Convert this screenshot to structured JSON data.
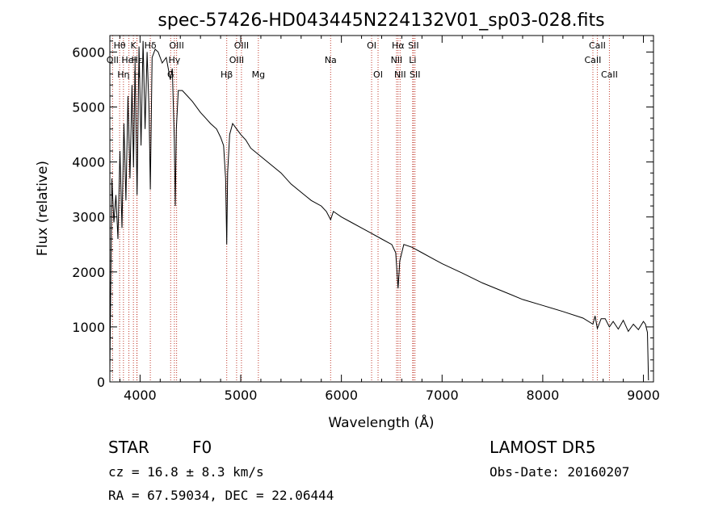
{
  "chart_data": {
    "type": "line",
    "title": "spec-57426-HD043445N224132V01_sp03-028.fits",
    "xlabel": "Wavelength (Å)",
    "ylabel": "Flux (relative)",
    "xlim": [
      3700,
      9100
    ],
    "ylim": [
      0,
      6300
    ],
    "xticks": [
      4000,
      5000,
      6000,
      7000,
      8000,
      9000
    ],
    "yticks": [
      0,
      1000,
      2000,
      3000,
      4000,
      5000,
      6000
    ],
    "grid": false,
    "line_color": "#000000",
    "marker_color": "#c0392b",
    "spectrum": {
      "name": "",
      "x": [
        3700,
        3720,
        3740,
        3760,
        3780,
        3800,
        3820,
        3840,
        3860,
        3880,
        3900,
        3920,
        3935,
        3950,
        3970,
        3990,
        4010,
        4030,
        4050,
        4070,
        4090,
        4102,
        4120,
        4150,
        4180,
        4220,
        4260,
        4300,
        4320,
        4340,
        4350,
        4360,
        4380,
        4420,
        4470,
        4520,
        4600,
        4650,
        4700,
        4760,
        4800,
        4830,
        4850,
        4861,
        4870,
        4890,
        4920,
        4960,
        5000,
        5050,
        5100,
        5200,
        5300,
        5400,
        5500,
        5600,
        5700,
        5800,
        5850,
        5893,
        5920,
        6000,
        6100,
        6200,
        6300,
        6400,
        6500,
        6540,
        6563,
        6580,
        6620,
        6700,
        6800,
        6900,
        7000,
        7200,
        7400,
        7600,
        7800,
        8000,
        8200,
        8400,
        8498,
        8520,
        8542,
        8580,
        8620,
        8662,
        8700,
        8750,
        8800,
        8850,
        8900,
        8950,
        9000,
        9020,
        9040,
        9050
      ],
      "y": [
        200,
        3700,
        2900,
        3400,
        2600,
        4200,
        2800,
        4700,
        3300,
        5200,
        3700,
        5400,
        3900,
        5800,
        3400,
        6100,
        4300,
        6200,
        4600,
        6000,
        4900,
        3500,
        5900,
        6050,
        6000,
        5800,
        5900,
        5500,
        5700,
        4400,
        3200,
        4600,
        5300,
        5300,
        5200,
        5100,
        4900,
        4800,
        4700,
        4600,
        4450,
        4300,
        3700,
        2500,
        3800,
        4500,
        4700,
        4600,
        4500,
        4400,
        4250,
        4100,
        3950,
        3800,
        3600,
        3450,
        3300,
        3200,
        3100,
        2950,
        3100,
        3000,
        2900,
        2800,
        2700,
        2600,
        2500,
        2350,
        1700,
        2200,
        2500,
        2450,
        2350,
        2250,
        2150,
        1980,
        1800,
        1650,
        1500,
        1390,
        1280,
        1160,
        1050,
        1200,
        970,
        1150,
        1150,
        1000,
        1100,
        960,
        1120,
        920,
        1050,
        950,
        1100,
        1050,
        900,
        30
      ]
    },
    "lines": [
      {
        "label": "OII",
        "x": 3727,
        "row": 1
      },
      {
        "label": "Hθ",
        "x": 3797,
        "row": 0
      },
      {
        "label": "Hη",
        "x": 3835,
        "row": 2
      },
      {
        "label": "HeI",
        "x": 3889,
        "row": 1
      },
      {
        "label": "K",
        "x": 3934,
        "row": 0
      },
      {
        "label": "H",
        "x": 3968,
        "row": 2
      },
      {
        "label": "Hε",
        "x": 3970,
        "row": 1
      },
      {
        "label": "Hδ",
        "x": 4102,
        "row": 0
      },
      {
        "label": "Hγ",
        "x": 4341,
        "row": 1
      },
      {
        "label": "G",
        "x": 4304,
        "row": 2
      },
      {
        "label": "OIII",
        "x": 4363,
        "row": 0
      },
      {
        "label": "Hβ",
        "x": 4861,
        "row": 2
      },
      {
        "label": "OIII",
        "x": 4959,
        "row": 1
      },
      {
        "label": "OIII",
        "x": 5007,
        "row": 0
      },
      {
        "label": "Mg",
        "x": 5175,
        "row": 2
      },
      {
        "label": "Na",
        "x": 5893,
        "row": 1
      },
      {
        "label": "OI",
        "x": 6300,
        "row": 0
      },
      {
        "label": "OI",
        "x": 6364,
        "row": 2
      },
      {
        "label": "NII",
        "x": 6548,
        "row": 1
      },
      {
        "label": "Hα",
        "x": 6563,
        "row": 0
      },
      {
        "label": "NII",
        "x": 6583,
        "row": 2
      },
      {
        "label": "Li",
        "x": 6708,
        "row": 1
      },
      {
        "label": "SII",
        "x": 6716,
        "row": 0
      },
      {
        "label": "SII",
        "x": 6731,
        "row": 2
      },
      {
        "label": "CaII",
        "x": 8498,
        "row": 1
      },
      {
        "label": "CaII",
        "x": 8542,
        "row": 0
      },
      {
        "label": "CaII",
        "x": 8662,
        "row": 2
      }
    ]
  },
  "info": {
    "class_label": "STAR",
    "subclass": "F0",
    "survey": "LAMOST DR5",
    "cz": "cz = 16.8 ± 8.3 km/s",
    "obs_date": "Obs-Date: 20160207",
    "coords": "RA =  67.59034, DEC =  22.06444"
  }
}
